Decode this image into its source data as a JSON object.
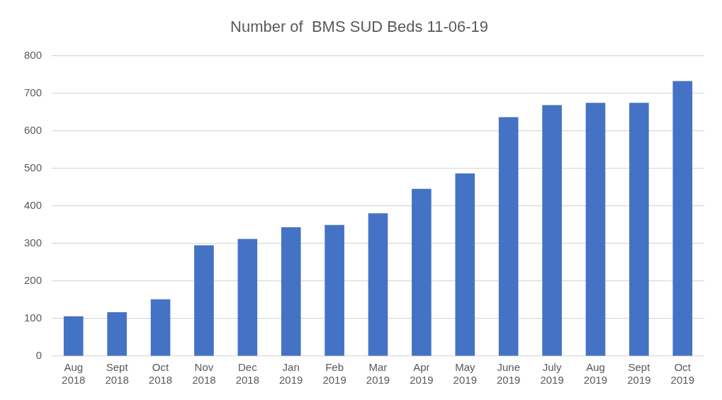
{
  "chart_data": {
    "type": "bar",
    "title": "Number of  BMS SUD Beds 11-06-19",
    "categories": [
      "Aug 2018",
      "Sept 2018",
      "Oct 2018",
      "Nov 2018",
      "Dec 2018",
      "Jan 2019",
      "Feb 2019",
      "Mar 2019",
      "Apr 2019",
      "May 2019",
      "June 2019",
      "July 2019",
      "Aug 2019",
      "Sept 2019",
      "Oct 2019"
    ],
    "values": [
      106,
      117,
      151,
      295,
      312,
      343,
      349,
      380,
      445,
      486,
      636,
      668,
      674,
      674,
      732
    ],
    "color": "#4472c4",
    "ylim": [
      0,
      800
    ],
    "yticks": [
      0,
      100,
      200,
      300,
      400,
      500,
      600,
      700,
      800
    ],
    "grid": "y"
  }
}
